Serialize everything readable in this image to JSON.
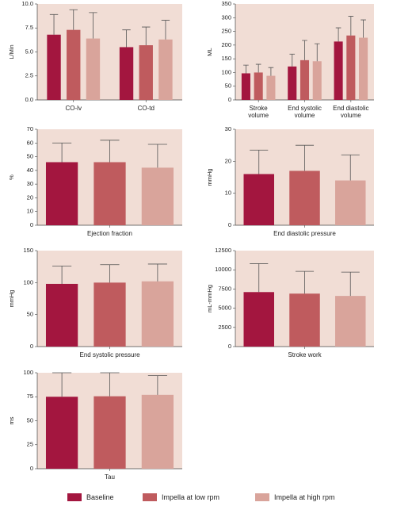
{
  "chart_data": [
    {
      "type": "bar",
      "ylabel": "L/Min",
      "categories": [
        "CO-lv",
        "CO-td"
      ],
      "series": [
        {
          "values": [
            6.8,
            5.5
          ],
          "errors": [
            2.1,
            1.8
          ]
        },
        {
          "values": [
            7.3,
            5.7
          ],
          "errors": [
            2.1,
            1.9
          ]
        },
        {
          "values": [
            6.4,
            6.3
          ],
          "errors": [
            2.7,
            2.0
          ]
        }
      ],
      "ylim": [
        0,
        10
      ],
      "yticks": [
        {
          "value": 0,
          "label": "0.0"
        },
        {
          "value": 2.5,
          "label": "2.5"
        },
        {
          "value": 5,
          "label": "5.0"
        },
        {
          "value": 7.5,
          "label": "7.5"
        },
        {
          "value": 10,
          "label": "10.0"
        }
      ]
    },
    {
      "type": "bar",
      "ylabel": "ML",
      "categories": [
        "Stroke volume",
        "End systolic volume",
        "End diastolic volume"
      ],
      "series": [
        {
          "values": [
            97,
            122,
            213
          ],
          "errors": [
            30,
            45,
            50
          ]
        },
        {
          "values": [
            100,
            145,
            235
          ],
          "errors": [
            30,
            72,
            70
          ]
        },
        {
          "values": [
            88,
            141,
            227
          ],
          "errors": [
            30,
            64,
            65
          ]
        }
      ],
      "ylim": [
        0,
        350
      ],
      "yticks": [
        0,
        50,
        100,
        150,
        200,
        250,
        300,
        350
      ]
    },
    {
      "type": "bar",
      "ylabel": "%",
      "categories": [
        "Ejection fraction"
      ],
      "series": [
        {
          "values": [
            46
          ],
          "errors": [
            14
          ]
        },
        {
          "values": [
            46
          ],
          "errors": [
            16
          ]
        },
        {
          "values": [
            42
          ],
          "errors": [
            17
          ]
        }
      ],
      "ylim": [
        0,
        70
      ],
      "yticks": [
        0,
        10,
        20,
        30,
        40,
        50,
        60,
        70
      ]
    },
    {
      "type": "bar",
      "ylabel": "mmHg",
      "categories": [
        "End diastolic pressure"
      ],
      "series": [
        {
          "values": [
            16
          ],
          "errors": [
            7.5
          ]
        },
        {
          "values": [
            17
          ],
          "errors": [
            8
          ]
        },
        {
          "values": [
            14
          ],
          "errors": [
            8
          ]
        }
      ],
      "ylim": [
        0,
        30
      ],
      "yticks": [
        0,
        10,
        20,
        30
      ]
    },
    {
      "type": "bar",
      "ylabel": "mmHg",
      "categories": [
        "End systolic pressure"
      ],
      "series": [
        {
          "values": [
            98
          ],
          "errors": [
            28
          ]
        },
        {
          "values": [
            100
          ],
          "errors": [
            28
          ]
        },
        {
          "values": [
            102
          ],
          "errors": [
            27
          ]
        }
      ],
      "ylim": [
        0,
        150
      ],
      "yticks": [
        0,
        50,
        100,
        150
      ]
    },
    {
      "type": "bar",
      "ylabel": "mL-mmHg",
      "categories": [
        "Stroke work"
      ],
      "series": [
        {
          "values": [
            7100
          ],
          "errors": [
            3700
          ]
        },
        {
          "values": [
            6900
          ],
          "errors": [
            2900
          ]
        },
        {
          "values": [
            6600
          ],
          "errors": [
            3100
          ]
        }
      ],
      "ylim": [
        0,
        12500
      ],
      "yticks": [
        0,
        2500,
        5000,
        7500,
        10000,
        12500
      ]
    },
    {
      "type": "bar",
      "ylabel": "ms",
      "categories": [
        "Tau"
      ],
      "series": [
        {
          "values": [
            75
          ],
          "errors": [
            25
          ]
        },
        {
          "values": [
            75.5
          ],
          "errors": [
            24.5
          ]
        },
        {
          "values": [
            77
          ],
          "errors": [
            20
          ]
        }
      ],
      "ylim": [
        0,
        100
      ],
      "yticks": [
        0,
        25,
        50,
        75,
        100
      ]
    }
  ],
  "legend": [
    {
      "name": "Baseline",
      "color": "#a3163f"
    },
    {
      "name": "Impella at low rpm",
      "color": "#bf5b5e"
    },
    {
      "name": "Impella at high rpm",
      "color": "#d9a49b"
    }
  ]
}
